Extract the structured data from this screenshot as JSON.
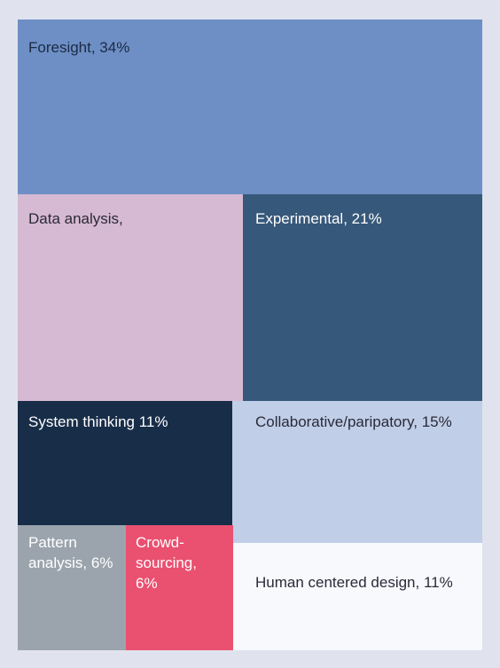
{
  "chart_data": {
    "type": "treemap",
    "items": [
      {
        "label": "Foresight, 34%",
        "name": "Foresight",
        "value": 34,
        "color": "#6e8fc5",
        "text_color": "#1b2a44"
      },
      {
        "label": "Data analysis,",
        "name": "Data analysis",
        "value": null,
        "color": "#d6b9d2",
        "text_color": "#2a2a38"
      },
      {
        "label": "Experimental, 21%",
        "name": "Experimental",
        "value": 21,
        "color": "#36587a",
        "text_color": "#ffffff"
      },
      {
        "label": "System thinking 11%",
        "name": "System thinking",
        "value": 11,
        "color": "#182d48",
        "text_color": "#ffffff"
      },
      {
        "label": "Collaborative/paripatory, 15%",
        "name": "Collaborative/paripatory",
        "value": 15,
        "color": "#c0cee8",
        "text_color": "#2a2a38"
      },
      {
        "label": "Pattern\nanalysis, 6%",
        "name": "Pattern analysis",
        "value": 6,
        "color": "#9ba4ad",
        "text_color": "#ffffff"
      },
      {
        "label": "Crowd-\nsourcing, 6%",
        "name": "Crowd-sourcing",
        "value": 6,
        "color": "#ea5070",
        "text_color": "#ffffff"
      },
      {
        "label": "Human centered design, 11%",
        "name": "Human centered design",
        "value": 11,
        "color": "#f8f9fd",
        "text_color": "#2a2a38"
      }
    ]
  }
}
